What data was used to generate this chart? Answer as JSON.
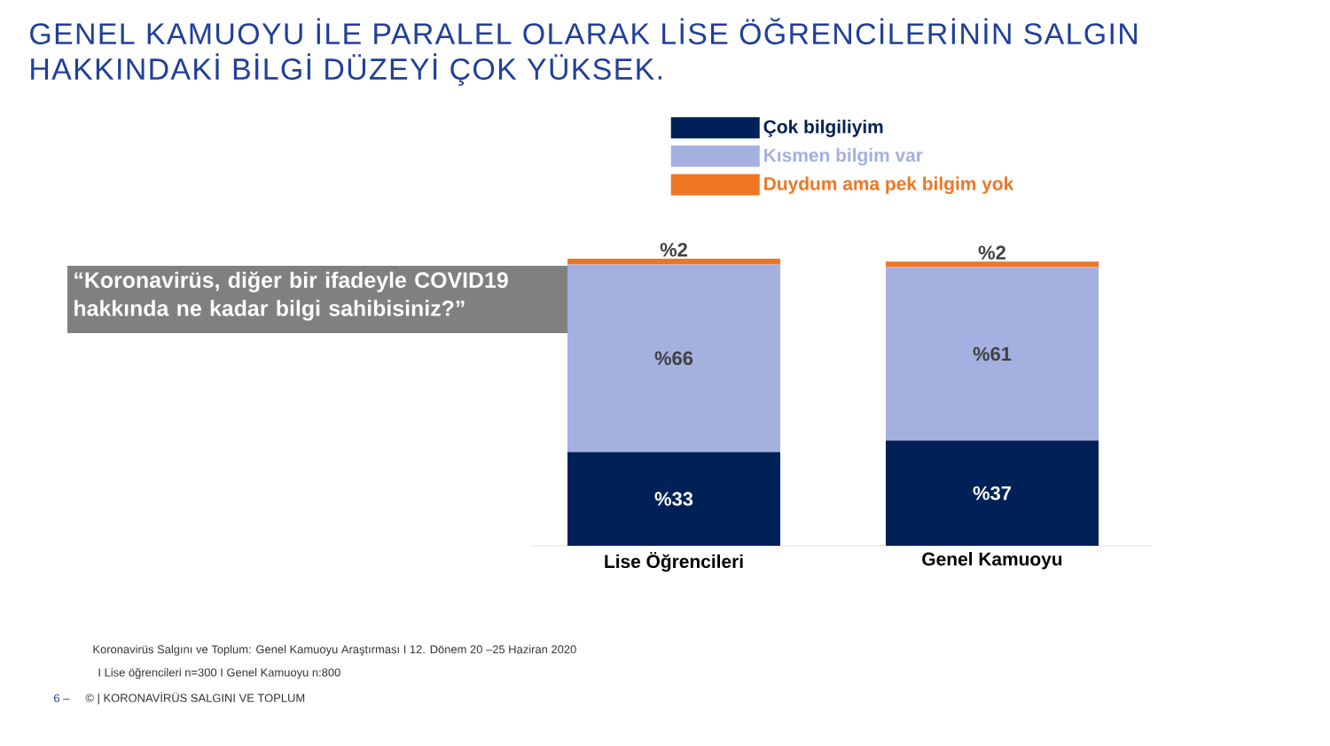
{
  "chart_data": {
    "type": "bar",
    "title": "GENEL KAMUOYU İLE PARALEL OLARAK LİSE ÖĞRENCİLERİNİN SALGIN HAKKINDAKİ BİLGİ DÜZEYİ ÇOK YÜKSEK.",
    "subtitle": "“Koronavirüs, diğer bir ifadeyle COVID19 hakkında ne kadar bilgi sahibisiniz?”",
    "categories": [
      "Lise Öğrencileri",
      "Genel Kamuoyu"
    ],
    "stacked": true,
    "legend": "top",
    "series": [
      {
        "name": "Çok bilgiliyim",
        "color": "#002157",
        "values": [
          33,
          37
        ],
        "value_labels": [
          "%33",
          "%37"
        ]
      },
      {
        "name": "Kısmen bilgim var",
        "color": "#a3b0e0",
        "values": [
          66,
          61
        ],
        "value_labels": [
          "%66",
          "%61"
        ]
      },
      {
        "name": "Duydum ama pek bilgim yok",
        "color": "#ee7623",
        "values": [
          2,
          2
        ],
        "value_labels": [
          "%2",
          "%2"
        ]
      }
    ],
    "annotations": [
      "Koronavirüs Salgını ve Toplum: Genel Kamuoyu Araştırması I 12. Dönem 20 –25 Haziran 2020",
      "I Lise öğrencileri n=300 I Genel Kamuoyu n:800",
      "6 –",
      "© | KORONAVİRÜS SALGINI VE TOPLUM"
    ]
  }
}
